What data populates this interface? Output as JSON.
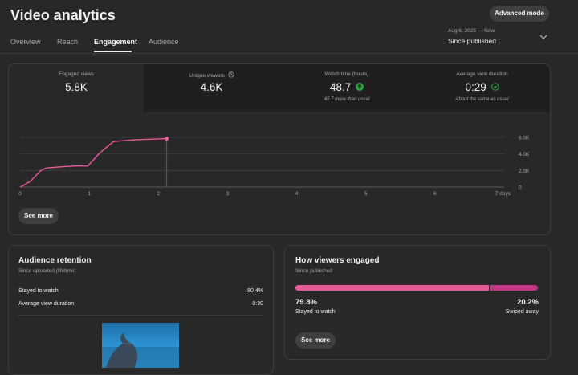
{
  "header": {
    "title": "Video analytics",
    "advanced_mode_label": "Advanced mode",
    "tabs": [
      {
        "label": "Overview",
        "active": false
      },
      {
        "label": "Reach",
        "active": false
      },
      {
        "label": "Engagement",
        "active": true
      },
      {
        "label": "Audience",
        "active": false
      }
    ],
    "date_range": {
      "range": "Aug 6, 2025 — Now",
      "label": "Since published",
      "icon": "chevron-down-icon"
    }
  },
  "metrics": [
    {
      "label": "Engaged views",
      "value": "5.8K",
      "note": "",
      "active": true,
      "icon": ""
    },
    {
      "label": "Unique viewers",
      "value": "4.6K",
      "note": "",
      "active": false,
      "icon": "clock-icon"
    },
    {
      "label": "Watch time (hours)",
      "value": "48.7",
      "note": "45.7 more than usual",
      "active": false,
      "icon": "arrow-up-circle-icon"
    },
    {
      "label": "Average view duration",
      "value": "0:29",
      "note": "About the same as usual",
      "active": false,
      "icon": "check-circle-icon"
    }
  ],
  "chart_data": {
    "type": "line",
    "x": [
      0,
      0.05,
      0.15,
      0.3,
      0.38,
      0.6,
      0.8,
      0.98,
      1.15,
      1.35,
      1.65,
      2.12
    ],
    "y": [
      0,
      200,
      700,
      2000,
      2300,
      2450,
      2550,
      2550,
      4100,
      5500,
      5700,
      5850
    ],
    "x_ticks": [
      "0",
      "1",
      "2",
      "3",
      "4",
      "5",
      "6",
      "7 days"
    ],
    "y_ticks": [
      "6.0K",
      "4.0K",
      "2.0K",
      "0"
    ],
    "xlim": [
      0,
      7
    ],
    "ylim": [
      0,
      6000
    ],
    "grid": true,
    "line_color": "#e8599a"
  },
  "engagement_card": {
    "see_more_label": "See more"
  },
  "retention": {
    "title": "Audience retention",
    "subtitle": "Since uploaded (lifetime)",
    "rows": [
      {
        "label": "Stayed to watch",
        "value": "80.4%"
      },
      {
        "label": "Average view duration",
        "value": "0:30"
      }
    ]
  },
  "viewers_engaged": {
    "title": "How viewers engaged",
    "subtitle": "Since published",
    "stayed_fraction": 0.798,
    "stayed_pct": "79.8%",
    "stayed_label": "Stayed to watch",
    "swiped_pct": "20.2%",
    "swiped_label": "Swiped away",
    "see_more_label": "See more"
  },
  "colors": {
    "accent_pink": "#e8599a",
    "accent_magenta": "#c13584",
    "up_green": "#2ba640",
    "check_green": "#2ba640"
  }
}
